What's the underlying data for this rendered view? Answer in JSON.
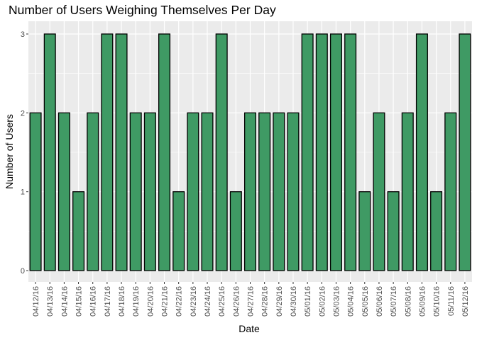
{
  "chart_data": {
    "type": "bar",
    "title": "Number of Users Weighing Themselves Per Day",
    "xlabel": "Date",
    "ylabel": "Number of Users",
    "categories": [
      "04/12/16",
      "04/13/16",
      "04/14/16",
      "04/15/16",
      "04/16/16",
      "04/17/16",
      "04/18/16",
      "04/19/16",
      "04/20/16",
      "04/21/16",
      "04/22/16",
      "04/23/16",
      "04/24/16",
      "04/25/16",
      "04/26/16",
      "04/27/16",
      "04/28/16",
      "04/29/16",
      "04/30/16",
      "05/01/16",
      "05/02/16",
      "05/03/16",
      "05/04/16",
      "05/05/16",
      "05/06/16",
      "05/07/16",
      "05/08/16",
      "05/09/16",
      "05/10/16",
      "05/11/16",
      "05/12/16"
    ],
    "values": [
      2,
      3,
      2,
      1,
      2,
      3,
      3,
      2,
      2,
      3,
      1,
      2,
      2,
      3,
      1,
      2,
      2,
      2,
      2,
      3,
      3,
      3,
      3,
      1,
      2,
      1,
      2,
      3,
      1,
      2,
      3
    ],
    "ylim": [
      0,
      3
    ],
    "yticks": [
      0,
      1,
      2,
      3
    ],
    "grid": true,
    "colors": {
      "bar_fill": "#3f9a64",
      "bar_stroke": "#000000",
      "panel": "#ebebeb",
      "grid": "#ffffff"
    }
  }
}
